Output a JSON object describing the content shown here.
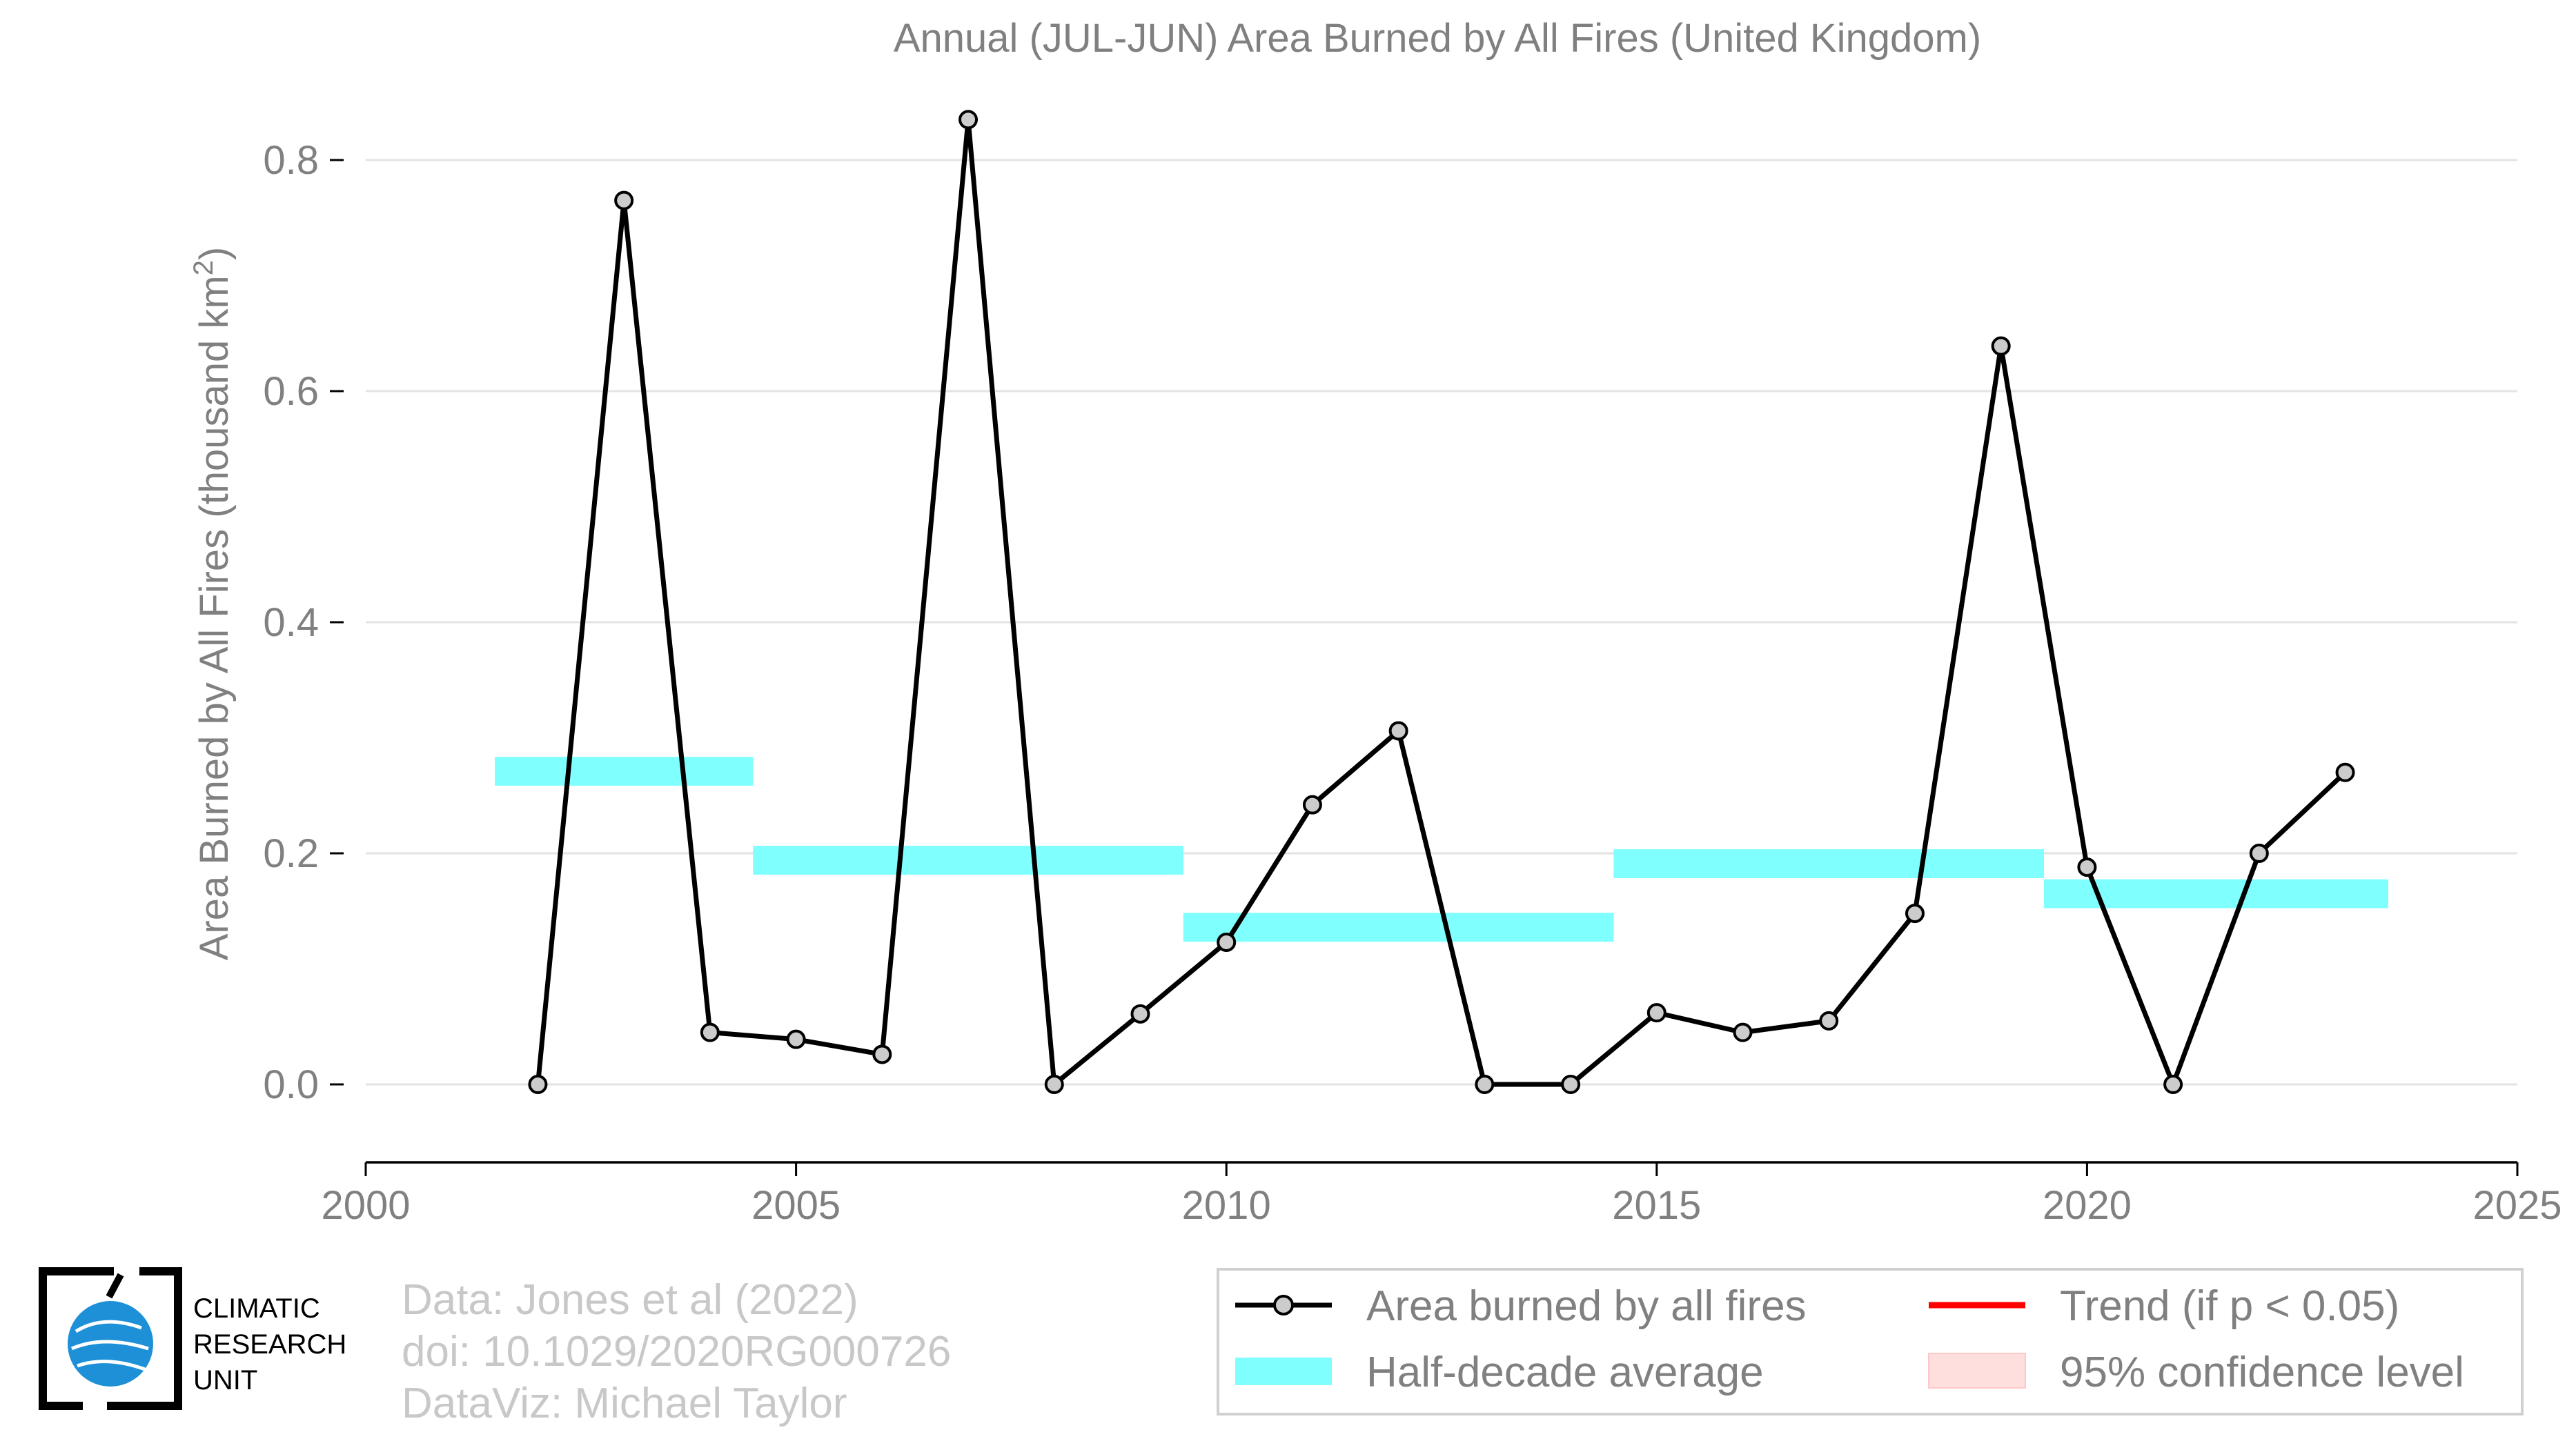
{
  "chart_data": {
    "type": "line",
    "title": "Annual (JUL-JUN) Area Burned by All Fires (United Kingdom)",
    "ylabel_main": "Area Burned by All Fires (thousand km",
    "ylabel_sup": "2",
    "ylabel_close": ")",
    "xlabel": "",
    "xlim": [
      2000,
      2025
    ],
    "ylim": [
      -0.066,
      0.86
    ],
    "x_ticks": [
      2000,
      2005,
      2010,
      2015,
      2020,
      2025
    ],
    "y_ticks": [
      0.0,
      0.2,
      0.4,
      0.6,
      0.8
    ],
    "x_tick_labels": [
      "2000",
      "2005",
      "2010",
      "2015",
      "2020",
      "2025"
    ],
    "y_tick_labels": [
      "0.0",
      "0.2",
      "0.4",
      "0.6",
      "0.8"
    ],
    "grid": "horizontal",
    "series": [
      {
        "name": "Area burned by all fires",
        "color": "#000000",
        "marker_fill": "#cccccc",
        "x": [
          2002,
          2003,
          2004,
          2005,
          2006,
          2007,
          2008,
          2009,
          2010,
          2011,
          2012,
          2013,
          2014,
          2015,
          2016,
          2017,
          2018,
          2019,
          2020,
          2021,
          2022,
          2023
        ],
        "y": [
          0.0,
          0.765,
          0.045,
          0.039,
          0.026,
          0.835,
          0.0,
          0.061,
          0.123,
          0.242,
          0.306,
          0.0,
          0.0,
          0.062,
          0.045,
          0.055,
          0.148,
          0.639,
          0.188,
          0.0,
          0.2,
          0.27
        ]
      }
    ],
    "half_decade_average": {
      "name": "Half-decade average",
      "color": "#80ffff",
      "segments": [
        {
          "x0": 2001.5,
          "x1": 2004.5,
          "y": 0.271
        },
        {
          "x0": 2004.5,
          "x1": 2009.5,
          "y": 0.194
        },
        {
          "x0": 2009.5,
          "x1": 2014.5,
          "y": 0.136
        },
        {
          "x0": 2014.5,
          "x1": 2019.5,
          "y": 0.191
        },
        {
          "x0": 2019.5,
          "x1": 2023.5,
          "y": 0.165
        }
      ]
    },
    "legend": {
      "placement": "bottom-right",
      "items": [
        {
          "label": "Area burned by all fires",
          "kind": "line-marker",
          "color": "#000000"
        },
        {
          "label": "Trend (if p < 0.05)",
          "kind": "line",
          "color": "#ff0000"
        },
        {
          "label": "Half-decade average",
          "kind": "band",
          "color": "#80ffff"
        },
        {
          "label": "95% confidence level",
          "kind": "band",
          "color": "#ffdede"
        }
      ]
    }
  },
  "credits": {
    "line1": "Data: Jones et al (2022)",
    "line2": "doi: 10.1029/2020RG000726",
    "line3": "DataViz: Michael Taylor"
  },
  "logo": {
    "line1": "CLIMATIC",
    "line2": "RESEARCH",
    "line3": "UNIT",
    "globe_color": "#1e90d8"
  }
}
